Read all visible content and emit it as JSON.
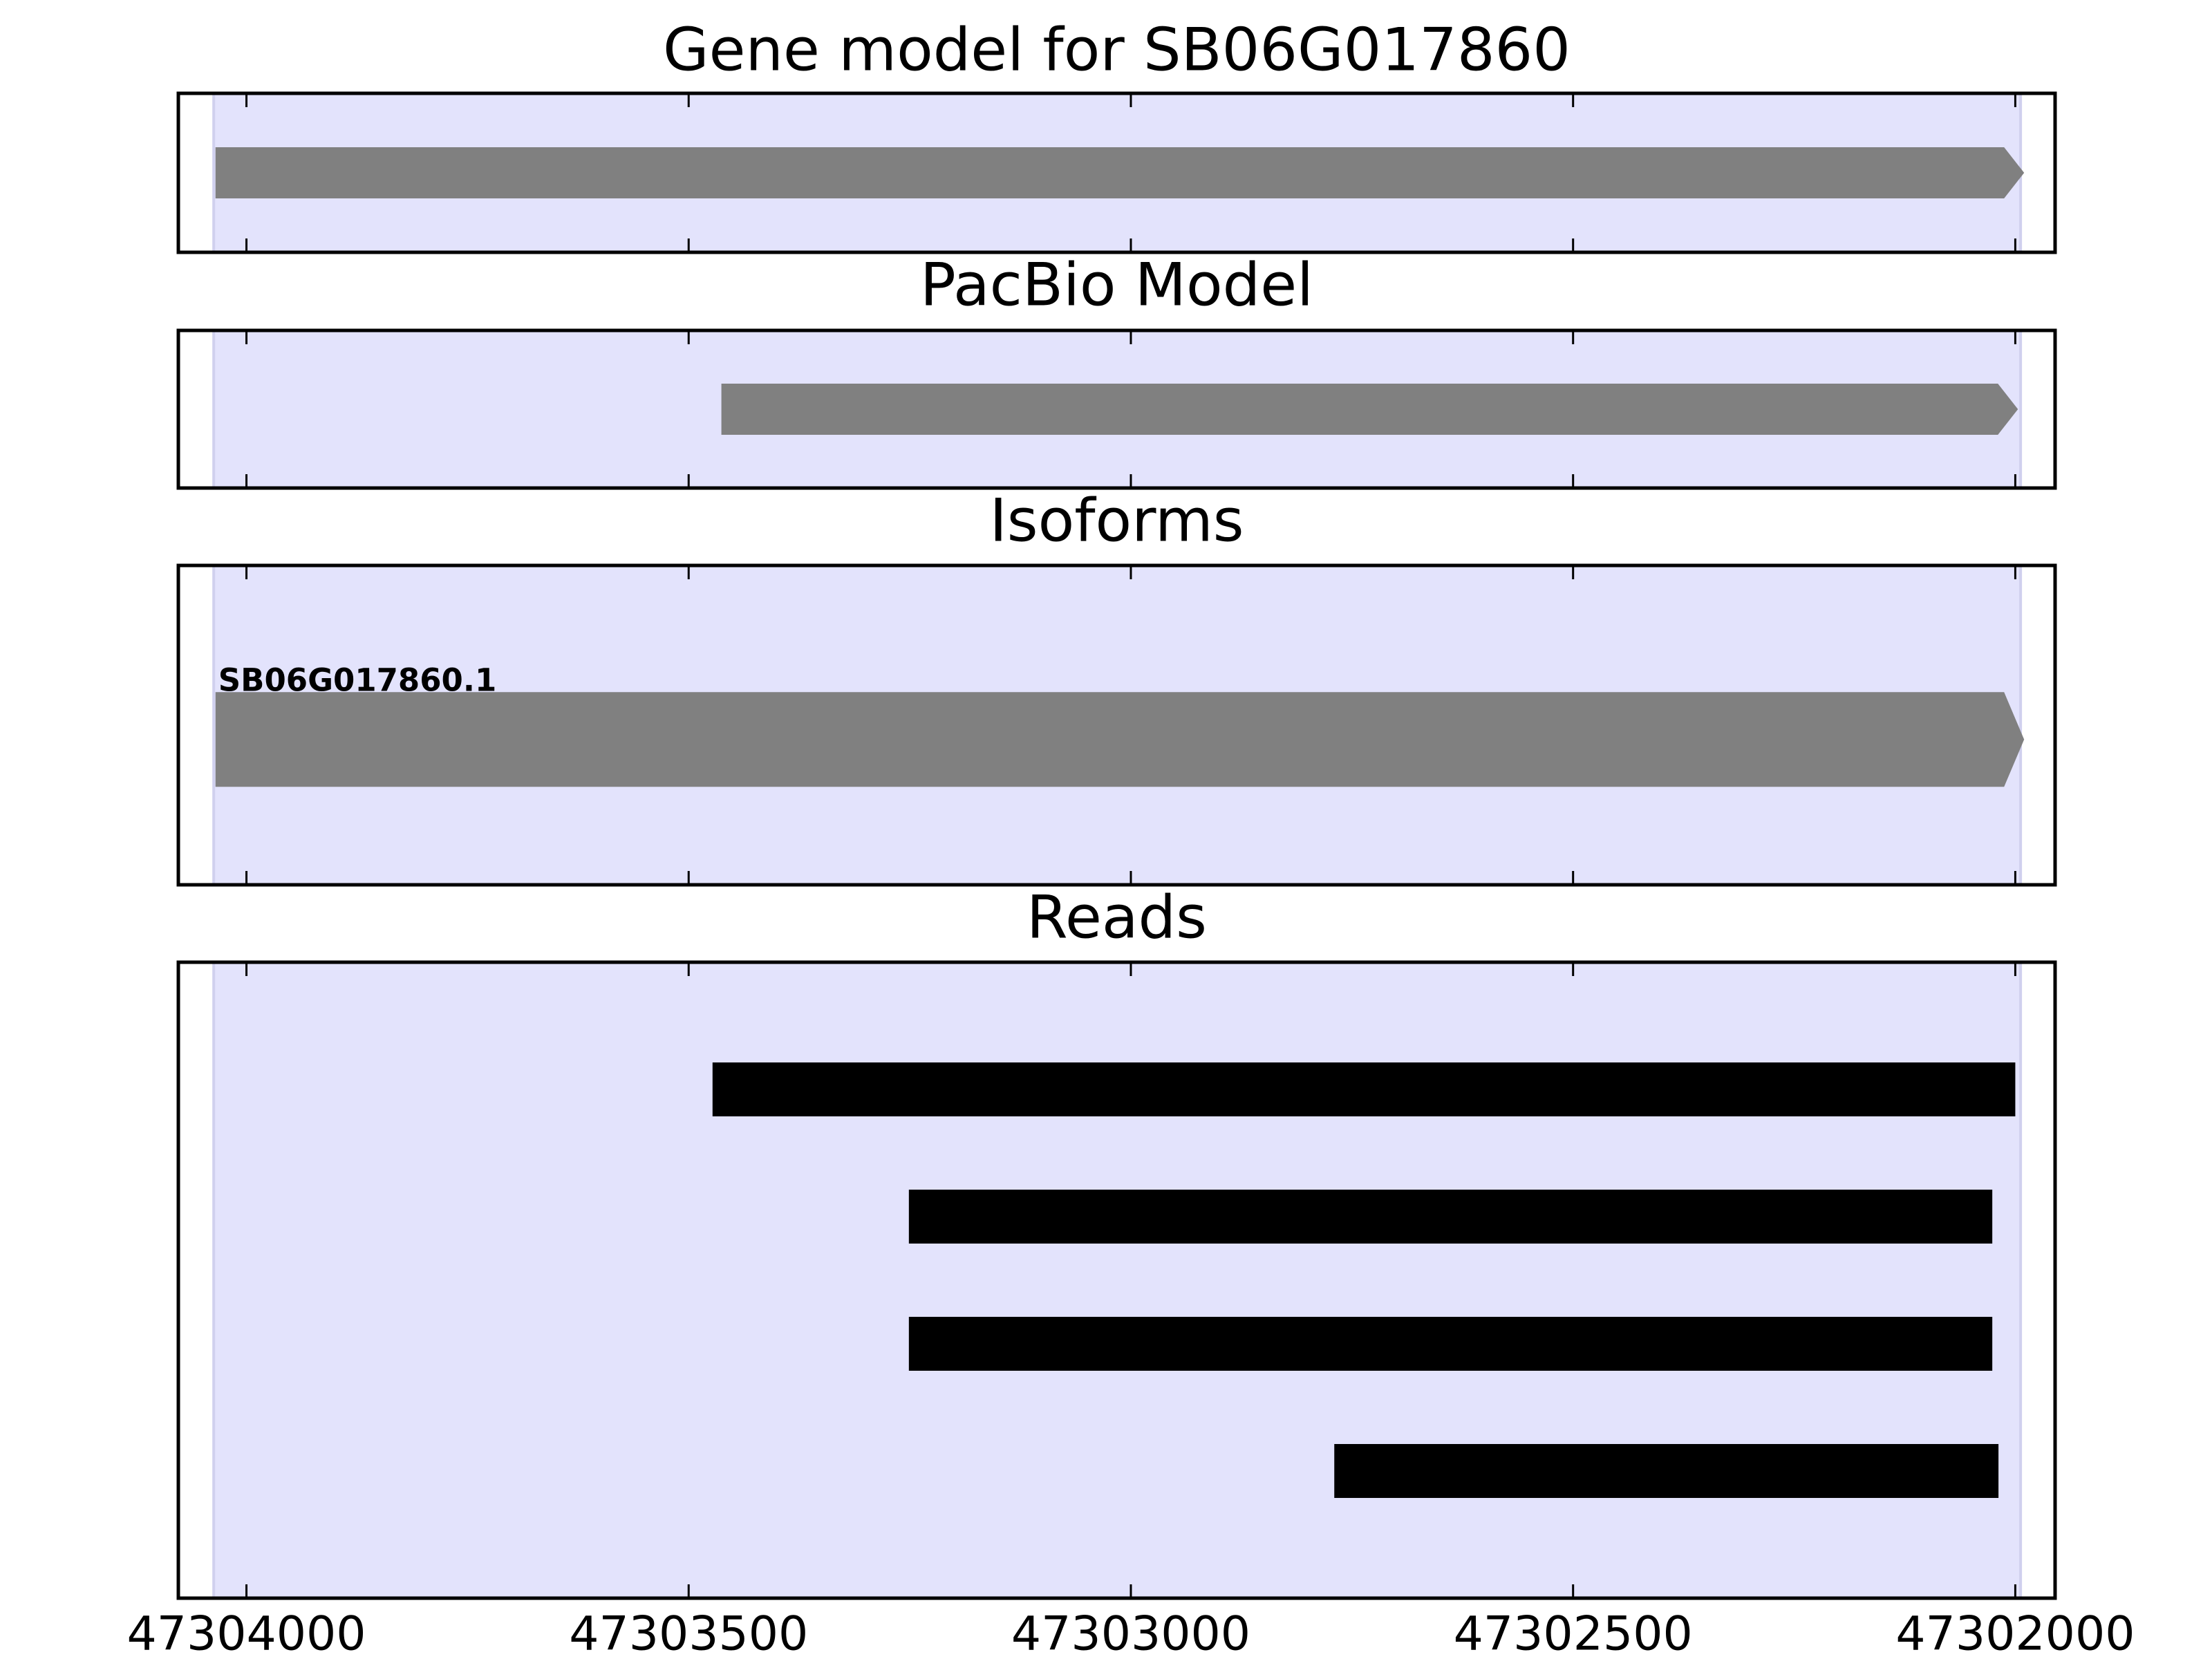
{
  "chart_data": [
    {
      "type": "span",
      "title": "Gene model for SB06G017860",
      "xlim": [
        47304077,
        47301955
      ],
      "xticks": [
        47304000,
        47303500,
        47303000,
        47302500,
        47302000
      ],
      "highlight": [
        47304037,
        47301994
      ],
      "highlight_color": "#e3e3fc",
      "color": "#808080",
      "arrow": true,
      "segments": [
        [
          47304035,
          47301990
        ]
      ]
    },
    {
      "type": "span",
      "title": "PacBio Model",
      "xlim": [
        47304077,
        47301955
      ],
      "xticks": [
        47304000,
        47303500,
        47303000,
        47302500,
        47302000
      ],
      "highlight": [
        47304037,
        47301994
      ],
      "highlight_color": "#e3e3fc",
      "color": "#808080",
      "arrow": true,
      "segments": [
        [
          47303463,
          47301997
        ]
      ]
    },
    {
      "type": "span",
      "title": "Isoforms",
      "xlim": [
        47304077,
        47301955
      ],
      "xticks": [
        47304000,
        47303500,
        47303000,
        47302500,
        47302000
      ],
      "highlight": [
        47304037,
        47301994
      ],
      "highlight_color": "#e3e3fc",
      "color": "#808080",
      "arrow": true,
      "segments": [
        [
          47304035,
          47301990
        ]
      ],
      "labels": [
        "SB06G017860.1"
      ]
    },
    {
      "type": "span",
      "title": "Reads",
      "xlim": [
        47304077,
        47301955
      ],
      "xticks": [
        47304000,
        47303500,
        47303000,
        47302500,
        47302000
      ],
      "highlight": [
        47304037,
        47301994
      ],
      "highlight_color": "#e3e3fc",
      "color": "#000000",
      "arrow": false,
      "segments": [
        [
          47303473,
          47302000
        ],
        [
          47303251,
          47302026
        ],
        [
          47303251,
          47302026
        ],
        [
          47302770,
          47302019
        ]
      ]
    }
  ]
}
